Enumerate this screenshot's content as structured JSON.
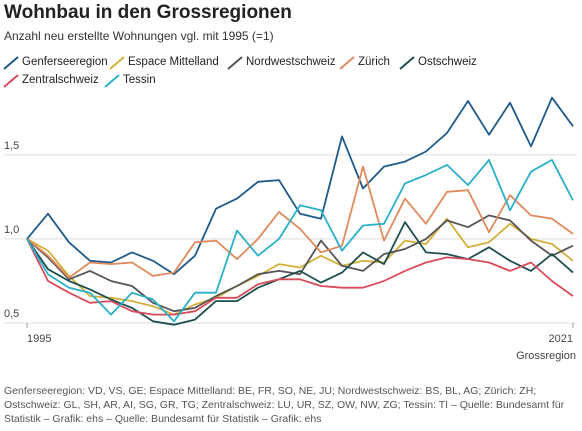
{
  "chart_data": {
    "type": "line",
    "title": "Wohnbau in den Grossregionen",
    "subtitle": "Anzahl neu erstellte Wohnungen vgl. mit 1995 (=1)",
    "x_label": "Grossregion",
    "footer": "Genferseeregion: VD, VS, GE; Espace Mittelland: BE, FR, SO, NE, JU; Nordwestschweiz: BS, BL, AG; Zürich: ZH; Ostschweiz: GL, SH, AR, AI, SG, GR, TG; Zentralschweiz: LU, UR, SZ, OW, NW, ZG; Tessin: TI – Quelle: Bundesamt für Statistik – Grafik: ehs – Quelle: Bundesamt für Statistik – Grafik: ehs",
    "x": [
      1995,
      1996,
      1997,
      1998,
      1999,
      2000,
      2001,
      2002,
      2003,
      2004,
      2005,
      2006,
      2007,
      2008,
      2009,
      2010,
      2011,
      2012,
      2013,
      2014,
      2015,
      2016,
      2017,
      2018,
      2019,
      2020,
      2021
    ],
    "xlim": [
      1995,
      2021
    ],
    "xticks": [
      1995,
      2021
    ],
    "ylim": [
      0.5,
      1.85
    ],
    "yticks": [
      {
        "value": 0.5,
        "label": "0,5"
      },
      {
        "value": 1.0,
        "label": "1,0"
      },
      {
        "value": 1.5,
        "label": "1,5"
      }
    ],
    "grid": true,
    "series": [
      {
        "name": "Genferseeregion",
        "color": "#1f5a8a",
        "values": [
          1.0,
          1.15,
          0.98,
          0.87,
          0.86,
          0.92,
          0.87,
          0.79,
          0.9,
          1.18,
          1.24,
          1.34,
          1.35,
          1.15,
          1.12,
          1.61,
          1.3,
          1.43,
          1.46,
          1.52,
          1.63,
          1.82,
          1.62,
          1.81,
          1.55,
          1.84,
          1.67
        ]
      },
      {
        "name": "Espace Mittelland",
        "color": "#d4b03a",
        "values": [
          1.0,
          0.93,
          0.78,
          0.66,
          0.65,
          0.63,
          0.6,
          0.55,
          0.61,
          0.65,
          0.72,
          0.78,
          0.85,
          0.83,
          0.9,
          0.84,
          0.87,
          0.86,
          0.99,
          0.97,
          1.12,
          0.95,
          0.98,
          1.09,
          1.0,
          0.97,
          0.87
        ]
      },
      {
        "name": "Nordwestschweiz",
        "color": "#555555",
        "values": [
          1.0,
          0.89,
          0.76,
          0.81,
          0.75,
          0.72,
          0.62,
          0.57,
          0.59,
          0.66,
          0.72,
          0.79,
          0.81,
          0.79,
          0.99,
          0.84,
          0.81,
          0.91,
          0.94,
          1.0,
          1.11,
          1.07,
          1.14,
          1.11,
          0.99,
          0.9,
          0.96
        ]
      },
      {
        "name": "Zürich",
        "color": "#e08a5e",
        "values": [
          1.0,
          0.9,
          0.77,
          0.86,
          0.85,
          0.86,
          0.78,
          0.8,
          0.98,
          0.99,
          0.88,
          1.0,
          1.16,
          1.06,
          0.92,
          0.96,
          1.43,
          0.99,
          1.24,
          1.09,
          1.28,
          1.29,
          1.04,
          1.26,
          1.14,
          1.12,
          1.03
        ]
      },
      {
        "name": "Ostschweiz",
        "color": "#1f4e4e",
        "values": [
          1.0,
          0.82,
          0.75,
          0.7,
          0.64,
          0.59,
          0.51,
          0.49,
          0.52,
          0.63,
          0.63,
          0.71,
          0.76,
          0.81,
          0.74,
          0.8,
          0.92,
          0.85,
          1.1,
          0.92,
          0.91,
          0.88,
          0.95,
          0.87,
          0.81,
          0.91,
          0.8
        ]
      },
      {
        "name": "Zentralschweiz",
        "color": "#d94a5a",
        "values": [
          1.0,
          0.75,
          0.68,
          0.62,
          0.63,
          0.57,
          0.55,
          0.55,
          0.57,
          0.65,
          0.65,
          0.73,
          0.76,
          0.76,
          0.72,
          0.71,
          0.71,
          0.75,
          0.81,
          0.86,
          0.89,
          0.88,
          0.86,
          0.81,
          0.86,
          0.75,
          0.66
        ]
      },
      {
        "name": "Tessin",
        "color": "#2ab0c8",
        "values": [
          1.0,
          0.79,
          0.71,
          0.68,
          0.55,
          0.68,
          0.64,
          0.51,
          0.68,
          0.68,
          1.05,
          0.9,
          1.0,
          1.2,
          1.17,
          0.93,
          1.08,
          1.09,
          1.33,
          1.38,
          1.44,
          1.32,
          1.47,
          1.17,
          1.4,
          1.47,
          1.23
        ]
      }
    ]
  }
}
